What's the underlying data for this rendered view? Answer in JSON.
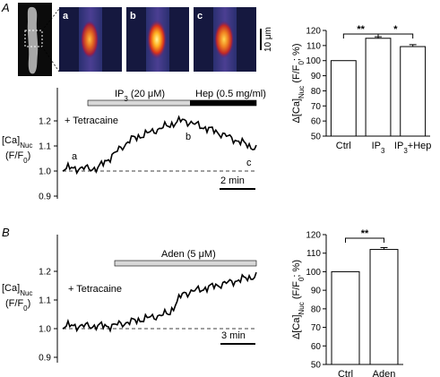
{
  "panels": {
    "A": {
      "letter": "A",
      "images": [
        {
          "label": "a",
          "style": "low"
        },
        {
          "label": "b",
          "style": "high"
        },
        {
          "label": "c",
          "style": "mid"
        }
      ],
      "scalebar_image": "10 μm",
      "trace": {
        "ylabel_main": "[Ca]",
        "ylabel_sub": "Nuc",
        "ylabel_norm": "(F/F",
        "ylabel_norm_sub": "0",
        "ylabel_norm_end": ")",
        "yticks": [
          "0.9",
          "1.0",
          "1.1",
          "1.2"
        ],
        "annotation": "+ Tetracaine",
        "marks": [
          "a",
          "b",
          "c"
        ],
        "bar1_label": "IP",
        "bar1_sub": "3",
        "bar1_rest": " (20 μM)",
        "bar2_label": "Hep (0.5 mg/ml)",
        "timebar": "2 min"
      },
      "chart_data": {
        "type": "bar",
        "categories": [
          "Ctrl",
          "IP3",
          "IP3+Hep"
        ],
        "category_labels": [
          {
            "main": "Ctrl",
            "sub": "",
            "rest": ""
          },
          {
            "main": "IP",
            "sub": "3",
            "rest": ""
          },
          {
            "main": "IP",
            "sub": "3",
            "rest": "+Hep"
          }
        ],
        "values": [
          100,
          114.8,
          109.3
        ],
        "errors": [
          0,
          1.0,
          1.3
        ],
        "ylim": [
          50,
          120
        ],
        "yticks": [
          50,
          60,
          70,
          80,
          90,
          100,
          110,
          120
        ],
        "ylabel": "Δ[Ca]Nuc (F/F0; %)",
        "significance": [
          {
            "from": 0,
            "to": 1,
            "label": "**"
          },
          {
            "from": 1,
            "to": 2,
            "label": "*"
          }
        ]
      }
    },
    "B": {
      "letter": "B",
      "trace": {
        "ylabel_main": "[Ca]",
        "ylabel_sub": "Nuc",
        "ylabel_norm": "(F/F",
        "ylabel_norm_sub": "0",
        "ylabel_norm_end": ")",
        "yticks": [
          "0.9",
          "1.0",
          "1.1",
          "1.2"
        ],
        "annotation": "+ Tetracaine",
        "bar1_label": "Aden (5 μM)",
        "timebar": "3 min"
      },
      "chart_data": {
        "type": "bar",
        "categories": [
          "Ctrl",
          "Aden"
        ],
        "values": [
          100,
          112
        ],
        "errors": [
          0,
          1.0
        ],
        "ylim": [
          50,
          120
        ],
        "yticks": [
          50,
          60,
          70,
          80,
          90,
          100,
          110,
          120
        ],
        "ylabel": "Δ[Ca]Nuc (F/F0; %)",
        "significance": [
          {
            "from": 0,
            "to": 1,
            "label": "**"
          }
        ]
      }
    }
  },
  "ylabel_parts": {
    "delta": "Δ[Ca]",
    "sub": "Nuc",
    "mid": " (F/F",
    "sub2": "0",
    "end": "; %)"
  },
  "colors": {
    "trace": "#000000",
    "bar_fill": "#ffffff",
    "stim_bar": "#d8d8d8",
    "hep_bar": "#000000",
    "image_bg": "#3a3f8a"
  }
}
